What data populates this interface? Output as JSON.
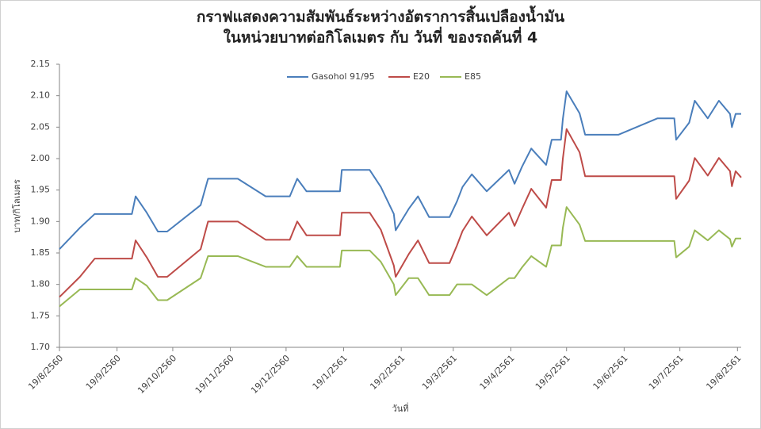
{
  "chart_data": {
    "type": "line",
    "title": [
      "กราฟแสดงความสัมพันธ์ระหว่างอัตราการสิ้นเปลืองน้ำมัน",
      "ในหน่วยบาทต่อกิโลเมตร  กับ วันที่  ของรถคันที่ 4"
    ],
    "xlabel": "วันที่",
    "ylabel": "บาท/กิโลเมตร",
    "x": [
      0,
      11,
      19,
      39,
      41,
      47,
      53,
      58,
      76,
      80,
      96,
      111,
      124,
      128,
      133,
      151,
      152,
      167,
      173,
      180,
      181,
      188,
      193,
      199,
      210,
      214,
      217,
      222,
      230,
      242,
      245,
      249,
      254,
      262,
      265,
      270,
      271,
      273,
      280,
      283,
      301,
      322,
      331,
      332,
      339,
      342,
      349,
      355,
      361,
      362,
      364,
      367
    ],
    "series": [
      {
        "name": "Gasohol 91/95",
        "color": "#4a7ebb",
        "values": [
          1.856,
          1.89,
          1.912,
          1.912,
          1.94,
          1.914,
          1.884,
          1.884,
          1.926,
          1.968,
          1.968,
          1.94,
          1.94,
          1.968,
          1.948,
          1.948,
          1.982,
          1.982,
          1.955,
          1.912,
          1.886,
          1.92,
          1.94,
          1.907,
          1.907,
          1.932,
          1.955,
          1.975,
          1.948,
          1.982,
          1.96,
          1.987,
          2.016,
          1.99,
          2.03,
          2.03,
          2.063,
          2.107,
          2.072,
          2.038,
          2.038,
          2.064,
          2.064,
          2.03,
          2.057,
          2.092,
          2.064,
          2.092,
          2.071,
          2.05,
          2.071,
          2.071
        ]
      },
      {
        "name": "E20",
        "color": "#be4b48",
        "values": [
          1.78,
          1.812,
          1.841,
          1.841,
          1.87,
          1.843,
          1.812,
          1.812,
          1.856,
          1.9,
          1.9,
          1.871,
          1.871,
          1.9,
          1.878,
          1.878,
          1.914,
          1.914,
          1.887,
          1.83,
          1.812,
          1.848,
          1.87,
          1.834,
          1.834,
          1.862,
          1.885,
          1.908,
          1.878,
          1.914,
          1.893,
          1.92,
          1.952,
          1.922,
          1.966,
          1.966,
          2.0,
          2.047,
          2.01,
          1.972,
          1.972,
          1.972,
          1.972,
          1.936,
          1.965,
          2.001,
          1.973,
          2.001,
          1.98,
          1.956,
          1.98,
          1.97
        ]
      },
      {
        "name": "E85",
        "color": "#98b954",
        "values": [
          1.765,
          1.792,
          1.792,
          1.792,
          1.81,
          1.798,
          1.775,
          1.775,
          1.81,
          1.845,
          1.845,
          1.828,
          1.828,
          1.845,
          1.828,
          1.828,
          1.854,
          1.854,
          1.836,
          1.8,
          1.783,
          1.81,
          1.81,
          1.783,
          1.783,
          1.8,
          1.8,
          1.8,
          1.783,
          1.81,
          1.81,
          1.827,
          1.845,
          1.828,
          1.862,
          1.862,
          1.89,
          1.923,
          1.895,
          1.869,
          1.869,
          1.869,
          1.869,
          1.843,
          1.86,
          1.886,
          1.87,
          1.886,
          1.872,
          1.86,
          1.873,
          1.873
        ]
      }
    ],
    "xlim": [
      0,
      367
    ],
    "xticks": [
      {
        "value": 0,
        "label": "19/8/2560"
      },
      {
        "value": 31,
        "label": "19/9/2560"
      },
      {
        "value": 61,
        "label": "19/10/2560"
      },
      {
        "value": 92,
        "label": "19/11/2560"
      },
      {
        "value": 122,
        "label": "19/12/2560"
      },
      {
        "value": 153,
        "label": "19/1/2561"
      },
      {
        "value": 184,
        "label": "19/2/2561"
      },
      {
        "value": 212,
        "label": "19/3/2561"
      },
      {
        "value": 243,
        "label": "19/4/2561"
      },
      {
        "value": 273,
        "label": "19/5/2561"
      },
      {
        "value": 304,
        "label": "19/6/2561"
      },
      {
        "value": 334,
        "label": "19/7/2561"
      },
      {
        "value": 365,
        "label": "19/8/2561"
      }
    ],
    "ylim": [
      1.7,
      2.15
    ],
    "yticks": [
      {
        "value": 1.7,
        "label": "1.70"
      },
      1.75,
      {
        "value": 1.8,
        "label": "1.80"
      },
      1.85,
      {
        "value": 1.9,
        "label": "1.90"
      },
      1.95,
      {
        "value": 2.0,
        "label": "2.00"
      },
      2.05,
      {
        "value": 2.1,
        "label": "2.10"
      },
      2.15
    ],
    "grid": false,
    "legend": "top"
  }
}
